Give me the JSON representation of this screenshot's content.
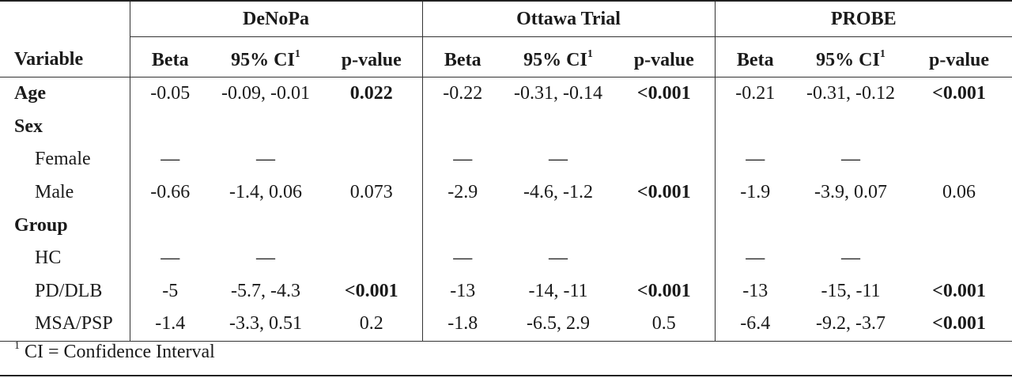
{
  "table": {
    "groups": [
      "DeNoPa",
      "Ottawa Trial",
      "PROBE"
    ],
    "variable_header": "Variable",
    "sub_headers": {
      "beta": "Beta",
      "ci": "95% CI",
      "ci_sup": "1",
      "p": "p-value"
    },
    "rows": [
      {
        "label": "Age",
        "type": "header",
        "cells": [
          {
            "beta": "-0.05",
            "ci": "-0.09, -0.01",
            "p": "0.022",
            "bold": true
          },
          {
            "beta": "-0.22",
            "ci": "-0.31, -0.14",
            "p": "<0.001",
            "bold": true
          },
          {
            "beta": "-0.21",
            "ci": "-0.31, -0.12",
            "p": "<0.001",
            "bold": true
          }
        ]
      },
      {
        "label": "Sex",
        "type": "header",
        "cells": [
          {
            "beta": "",
            "ci": "",
            "p": "",
            "bold": false
          },
          {
            "beta": "",
            "ci": "",
            "p": "",
            "bold": false
          },
          {
            "beta": "",
            "ci": "",
            "p": "",
            "bold": false
          }
        ]
      },
      {
        "label": "Female",
        "type": "sub",
        "cells": [
          {
            "beta": "—",
            "ci": "—",
            "p": "",
            "bold": false
          },
          {
            "beta": "—",
            "ci": "—",
            "p": "",
            "bold": false
          },
          {
            "beta": "—",
            "ci": "—",
            "p": "",
            "bold": false
          }
        ]
      },
      {
        "label": "Male",
        "type": "sub",
        "cells": [
          {
            "beta": "-0.66",
            "ci": "-1.4, 0.06",
            "p": "0.073",
            "bold": false
          },
          {
            "beta": "-2.9",
            "ci": "-4.6, -1.2",
            "p": "<0.001",
            "bold": true
          },
          {
            "beta": "-1.9",
            "ci": "-3.9, 0.07",
            "p": "0.06",
            "bold": false
          }
        ]
      },
      {
        "label": "Group",
        "type": "header",
        "cells": [
          {
            "beta": "",
            "ci": "",
            "p": "",
            "bold": false
          },
          {
            "beta": "",
            "ci": "",
            "p": "",
            "bold": false
          },
          {
            "beta": "",
            "ci": "",
            "p": "",
            "bold": false
          }
        ]
      },
      {
        "label": "HC",
        "type": "sub",
        "cells": [
          {
            "beta": "—",
            "ci": "—",
            "p": "",
            "bold": false
          },
          {
            "beta": "—",
            "ci": "—",
            "p": "",
            "bold": false
          },
          {
            "beta": "—",
            "ci": "—",
            "p": "",
            "bold": false
          }
        ]
      },
      {
        "label": "PD/DLB",
        "type": "sub",
        "cells": [
          {
            "beta": "-5",
            "ci": "-5.7, -4.3",
            "p": "<0.001",
            "bold": true
          },
          {
            "beta": "-13",
            "ci": "-14, -11",
            "p": "<0.001",
            "bold": true
          },
          {
            "beta": "-13",
            "ci": "-15, -11",
            "p": "<0.001",
            "bold": true
          }
        ]
      },
      {
        "label": "MSA/PSP",
        "type": "sub",
        "cells": [
          {
            "beta": "-1.4",
            "ci": "-3.3, 0.51",
            "p": "0.2",
            "bold": false
          },
          {
            "beta": "-1.8",
            "ci": "-6.5, 2.9",
            "p": "0.5",
            "bold": false
          },
          {
            "beta": "-6.4",
            "ci": "-9.2, -3.7",
            "p": "<0.001",
            "bold": true
          }
        ]
      }
    ],
    "footnote": {
      "marker": "1",
      "text": "CI = Confidence Interval"
    }
  }
}
